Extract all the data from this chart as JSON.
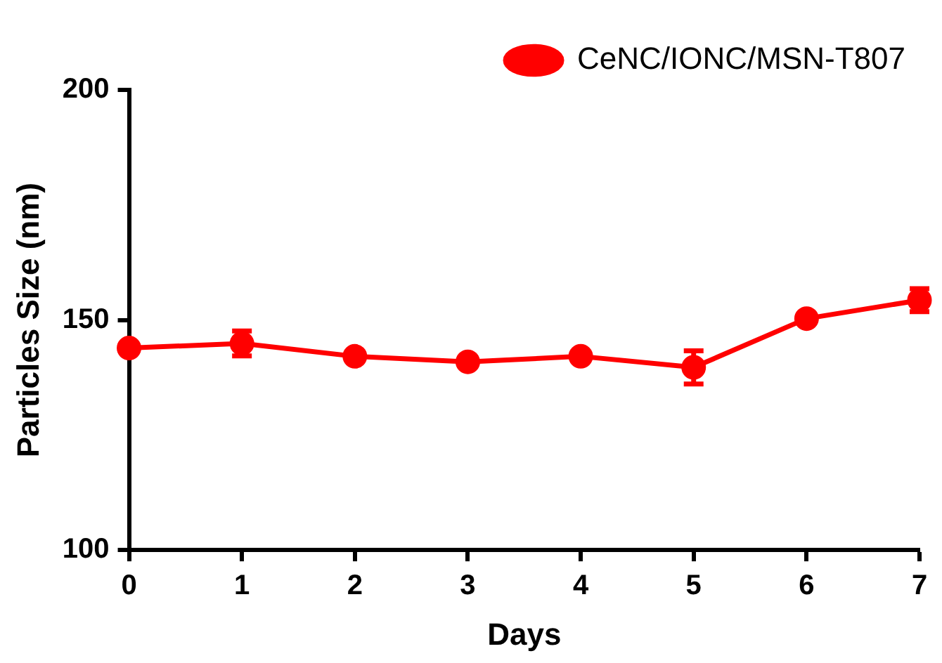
{
  "chart_data": {
    "type": "line",
    "xlabel": "Days",
    "ylabel": "Particles Size (nm)",
    "x": [
      0,
      1,
      2,
      3,
      4,
      5,
      6,
      7
    ],
    "series": [
      {
        "name": "CeNC/IONC/MSN-T807",
        "color": "#ff0000",
        "values": [
          143.9,
          144.9,
          142.1,
          140.9,
          142.1,
          139.7,
          150.3,
          154.3
        ],
        "errors": [
          null,
          2.7,
          null,
          null,
          null,
          3.6,
          null,
          2.5
        ]
      }
    ],
    "xlim": [
      0,
      7
    ],
    "xticks": [
      0,
      1,
      2,
      3,
      4,
      5,
      6,
      7
    ],
    "ylim": [
      100,
      200
    ],
    "yticks": [
      100,
      150,
      200
    ],
    "grid": false,
    "legend": "top right",
    "marker": "circle",
    "line_style": "solid"
  }
}
